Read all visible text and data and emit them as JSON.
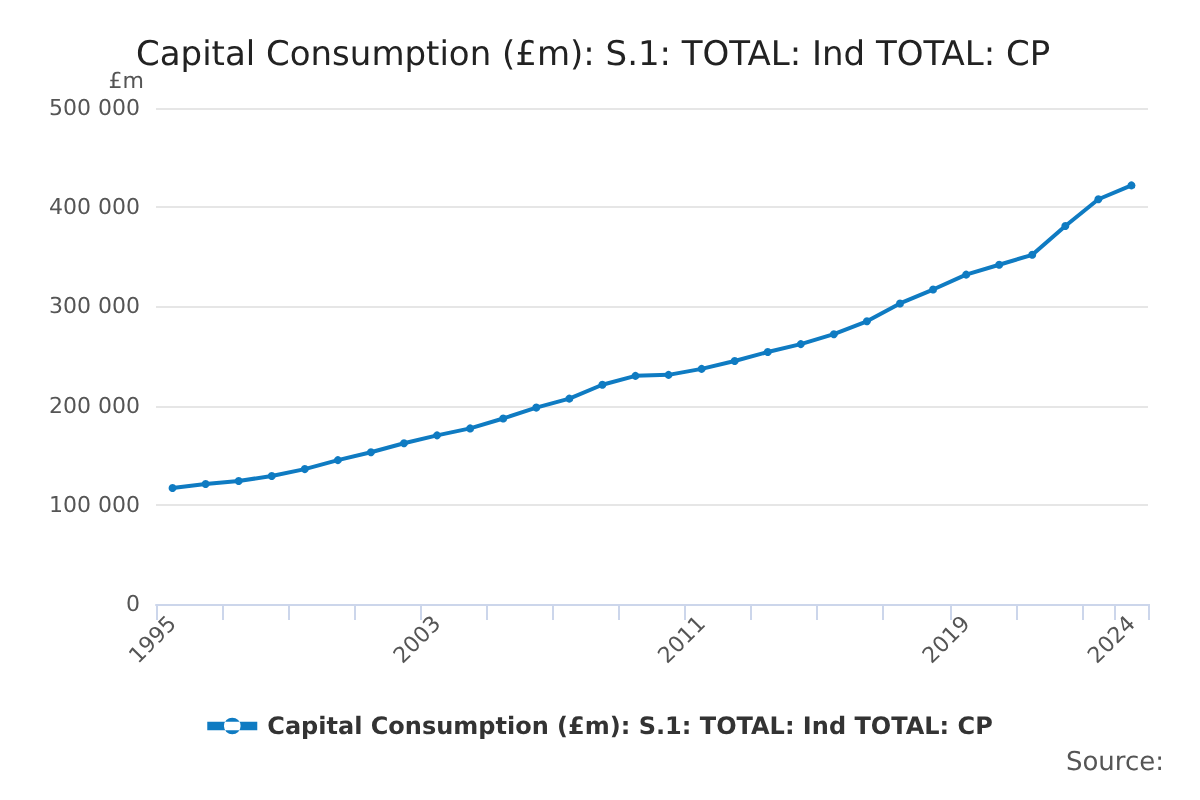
{
  "chart_data": {
    "type": "line",
    "title": "Capital Consumption (£m): S.1: TOTAL: Ind TOTAL: CP",
    "ylabel": "£m",
    "categories": [
      "1995",
      null,
      null,
      null,
      null,
      null,
      null,
      null,
      "2003",
      null,
      null,
      null,
      null,
      null,
      null,
      null,
      "2011",
      null,
      null,
      null,
      null,
      null,
      null,
      null,
      "2019",
      null,
      null,
      null,
      null,
      "2024"
    ],
    "series": [
      {
        "name": "Capital Consumption (£m): S.1: TOTAL: Ind TOTAL: CP",
        "color": "#0f7bc2",
        "values": [
          117000,
          121000,
          124000,
          129000,
          136000,
          145000,
          153000,
          162000,
          170000,
          177000,
          187000,
          198000,
          207000,
          221000,
          230000,
          231000,
          237000,
          245000,
          254000,
          262000,
          272000,
          285000,
          303000,
          317000,
          332000,
          342000,
          352000,
          381000,
          408000,
          422000
        ]
      }
    ],
    "ylim": [
      0,
      500000
    ],
    "yticks": [
      0,
      {
        "value": 100000,
        "label": "100 000"
      },
      {
        "value": 200000,
        "label": "200 000"
      },
      {
        "value": 300000,
        "label": "300 000"
      },
      {
        "value": 400000,
        "label": "400 000"
      },
      {
        "value": 500000,
        "label": "500 000"
      }
    ],
    "grid": "y",
    "legend": "bottom",
    "marker": "circle",
    "line_style": "solid",
    "annotations": [
      "Source:"
    ]
  }
}
